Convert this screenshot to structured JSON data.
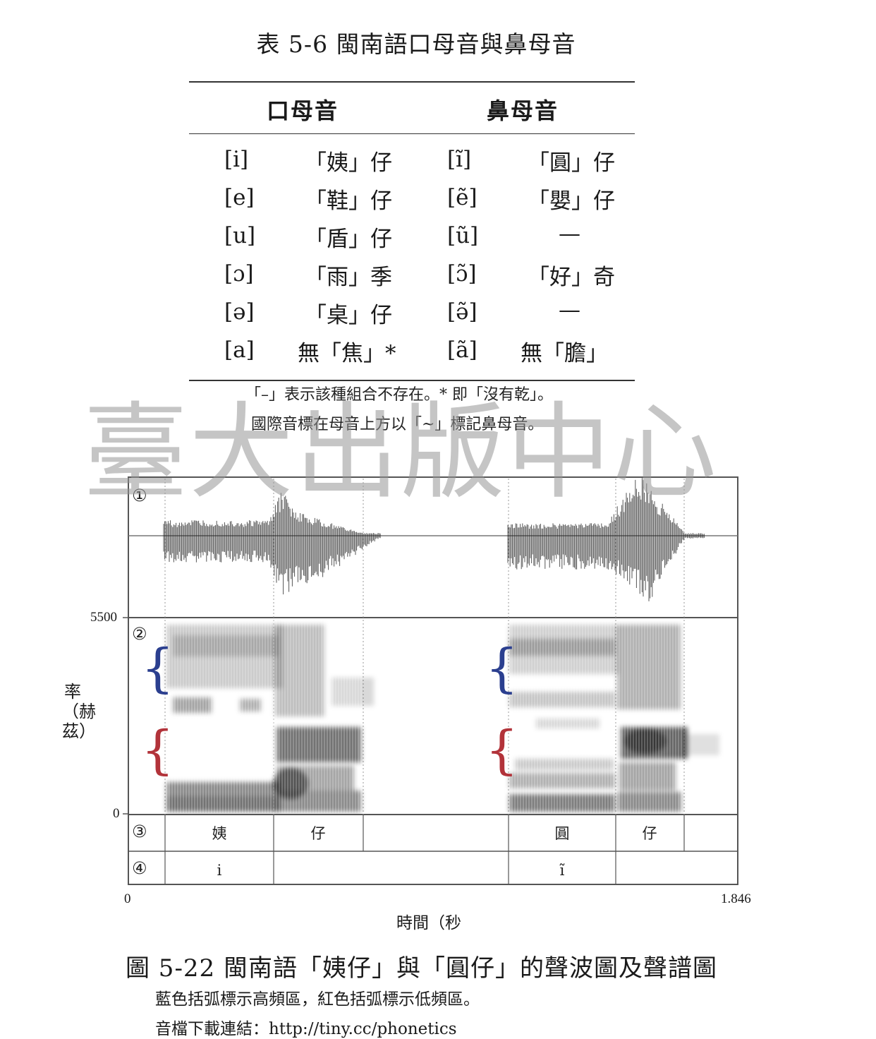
{
  "table": {
    "title": "表 5-6 閩南語口母音與鼻母音",
    "headers": {
      "oral": "口母音",
      "nasal": "鼻母音"
    },
    "rows": [
      {
        "oral_ipa": "[i]",
        "oral_word": "「姨」仔",
        "nasal_ipa": "[ĩ]",
        "nasal_word": "「圓」仔"
      },
      {
        "oral_ipa": "[e]",
        "oral_word": "「鞋」仔",
        "nasal_ipa": "[ẽ]",
        "nasal_word": "「嬰」仔"
      },
      {
        "oral_ipa": "[u]",
        "oral_word": "「盾」仔",
        "nasal_ipa": "[ũ]",
        "nasal_word": "—"
      },
      {
        "oral_ipa": "[ɔ]",
        "oral_word": "「雨」季",
        "nasal_ipa": "[ɔ̃]",
        "nasal_word": "「好」奇"
      },
      {
        "oral_ipa": "[ə]",
        "oral_word": "「桌」仔",
        "nasal_ipa": "[ə̃]",
        "nasal_word": "—"
      },
      {
        "oral_ipa": "[a]",
        "oral_word": "無「焦」*",
        "nasal_ipa": "[ã]",
        "nasal_word": "無「膽」"
      }
    ],
    "note1": "「–」表示該種組合不存在。* 即「沒有乾」。",
    "note2": "國際音標在母音上方以「~」標記鼻母音。"
  },
  "watermark": "臺大出版中心",
  "figure": {
    "y_top": "5500",
    "y_bottom": "0",
    "y_label": "率（赫茲）",
    "x_start": "0",
    "x_end": "1.846",
    "x_label": "時間（秒",
    "panel_numbers": [
      "①",
      "②",
      "③",
      "④"
    ],
    "tier3": [
      "姨",
      "仔",
      "圓",
      "仔"
    ],
    "tier4": [
      "i",
      "ĩ"
    ],
    "colors": {
      "high_bracket": "#2b3f8f",
      "low_bracket": "#b2333a"
    },
    "caption": "圖 5-22 閩南語「姨仔」與「圓仔」的聲波圖及聲譜圖",
    "sub1": "藍色括弧標示高頻區，紅色括弧標示低頻區。",
    "sub2": "音檔下載連結：http://tiny.cc/phonetics"
  }
}
